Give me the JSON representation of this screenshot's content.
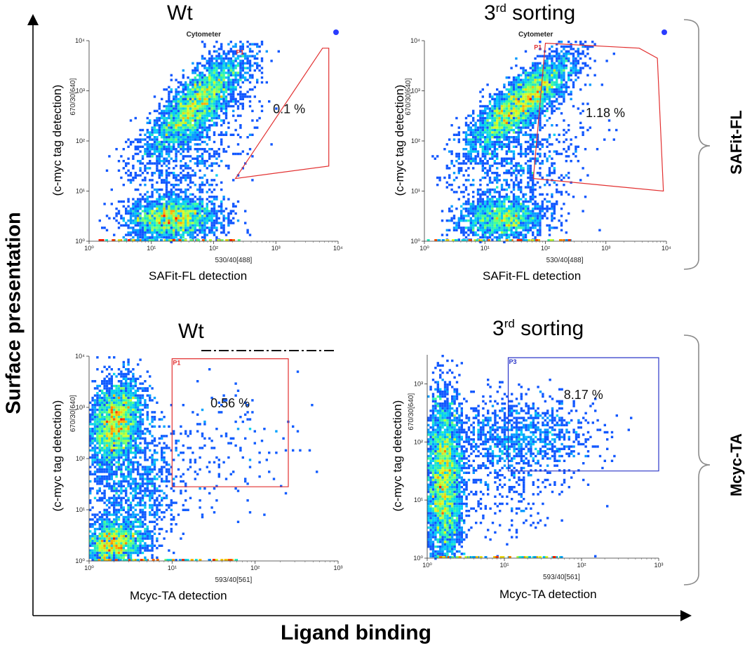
{
  "figure": {
    "y_axis_title": "Surface presentation",
    "x_axis_title": "Ligand binding",
    "groups": [
      "SAFit-FL",
      "Mcyc-TA"
    ]
  },
  "colors": {
    "gate_red": "#e23030",
    "gate_blue": "#2b36c8",
    "axis": "#333333"
  },
  "chart_data": [
    {
      "id": "p1",
      "type": "scatter",
      "subtitle": "density dot plot",
      "title_main": "Wt",
      "title_sup": "",
      "ylabel": "(c-myc tag detection)",
      "xlabel": "SAFit-FL detection",
      "x_channel": "530/40[488]",
      "y_channel": "670/30[640]",
      "instrument": "Cytometer",
      "gate_name": "P1",
      "gate_percent": "0.1 %",
      "gate_color": "red",
      "x_ticks": [
        "10⁰",
        "10¹",
        "10²",
        "10³",
        "10⁴"
      ],
      "y_ticks": [
        "10⁰",
        "10¹",
        "10²",
        "10³",
        "10⁴"
      ],
      "xlim": [
        0,
        4
      ],
      "ylim": [
        0,
        4
      ],
      "gate": [
        [
          3.75,
          3.85
        ],
        [
          3.85,
          3.85
        ],
        [
          3.85,
          1.5
        ],
        [
          2.35,
          1.25
        ]
      ]
    },
    {
      "id": "p2",
      "type": "scatter",
      "subtitle": "density dot plot",
      "title_main": "3",
      "title_sup": "rd",
      "title_rest": " sorting",
      "ylabel": "(c-myc tag detection)",
      "xlabel": "SAFit-FL detection",
      "x_channel": "530/40[488]",
      "y_channel": "670/30[640]",
      "instrument": "Cytometer",
      "gate_name": "P1",
      "gate_percent": "1.18 %",
      "gate_color": "red",
      "x_ticks": [
        "10⁰",
        "10¹",
        "10²",
        "10³",
        "10⁴"
      ],
      "y_ticks": [
        "10⁰",
        "10¹",
        "10²",
        "10³",
        "10⁴"
      ],
      "xlim": [
        0,
        4
      ],
      "ylim": [
        0,
        4
      ],
      "gate": [
        [
          2.0,
          3.95
        ],
        [
          3.55,
          3.85
        ],
        [
          3.85,
          3.65
        ],
        [
          3.95,
          1.0
        ],
        [
          1.8,
          1.25
        ]
      ]
    },
    {
      "id": "p3",
      "type": "scatter",
      "subtitle": "density dot plot",
      "title_main": "Wt",
      "title_sup": "",
      "ylabel": "(c-myc tag detection)",
      "xlabel": "Mcyc-TA  detection",
      "x_channel": "593/40[561]",
      "y_channel": "670/30[640]",
      "instrument": "",
      "gate_name": "P1",
      "gate_percent": "0.56 %",
      "gate_color": "red",
      "x_ticks": [
        "10⁰",
        "10¹",
        "10²",
        "10³"
      ],
      "y_ticks": [
        "10⁰",
        "10¹",
        "10²",
        "10³",
        "10⁴"
      ],
      "xlim": [
        0,
        3
      ],
      "ylim": [
        0,
        4
      ],
      "gate": [
        [
          1.0,
          3.95
        ],
        [
          2.4,
          3.95
        ],
        [
          2.4,
          1.45
        ],
        [
          1.0,
          1.45
        ]
      ]
    },
    {
      "id": "p4",
      "type": "scatter",
      "subtitle": "density dot plot",
      "title_main": "3",
      "title_sup": "rd",
      "title_rest": " sorting",
      "ylabel": "(c-myc tag detection)",
      "xlabel": "Mcyc-TA  detection",
      "x_channel": "593/40[561]",
      "y_channel": "670/30[640]",
      "instrument": "",
      "gate_name": "P3",
      "gate_percent": "8.17 %",
      "gate_color": "blue",
      "x_ticks": [
        "10⁰",
        "10¹",
        "10²",
        "10³"
      ],
      "y_ticks": [
        "10⁰",
        "10¹",
        "10²",
        "10³"
      ],
      "xlim": [
        0,
        3
      ],
      "ylim": [
        0,
        3.5
      ],
      "gate": [
        [
          1.05,
          3.45
        ],
        [
          3.0,
          3.45
        ],
        [
          3.0,
          1.5
        ],
        [
          1.05,
          1.5
        ]
      ]
    }
  ]
}
